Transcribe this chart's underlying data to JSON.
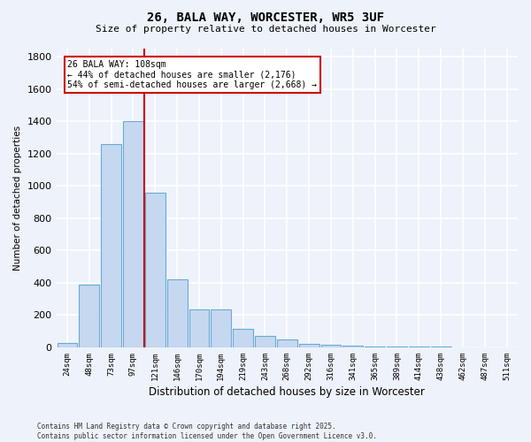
{
  "title": "26, BALA WAY, WORCESTER, WR5 3UF",
  "subtitle": "Size of property relative to detached houses in Worcester",
  "xlabel": "Distribution of detached houses by size in Worcester",
  "ylabel": "Number of detached properties",
  "categories": [
    "24sqm",
    "48sqm",
    "73sqm",
    "97sqm",
    "121sqm",
    "146sqm",
    "170sqm",
    "194sqm",
    "219sqm",
    "243sqm",
    "268sqm",
    "292sqm",
    "316sqm",
    "341sqm",
    "365sqm",
    "389sqm",
    "414sqm",
    "438sqm",
    "462sqm",
    "487sqm",
    "511sqm"
  ],
  "values": [
    25,
    390,
    1260,
    1400,
    960,
    420,
    235,
    235,
    115,
    70,
    50,
    20,
    15,
    10,
    5,
    5,
    3,
    3,
    2,
    2,
    0
  ],
  "bar_color": "#c5d8f0",
  "bar_edge_color": "#6aaad4",
  "vline_index": 3.5,
  "vline_color": "#cc0000",
  "annotation_text": "26 BALA WAY: 108sqm\n← 44% of detached houses are smaller (2,176)\n54% of semi-detached houses are larger (2,668) →",
  "annotation_box_color": "#ffffff",
  "annotation_box_edge": "#cc0000",
  "background_color": "#eef2fa",
  "grid_color": "#ffffff",
  "footer": "Contains HM Land Registry data © Crown copyright and database right 2025.\nContains public sector information licensed under the Open Government Licence v3.0.",
  "ylim": [
    0,
    1850
  ],
  "yticks": [
    0,
    200,
    400,
    600,
    800,
    1000,
    1200,
    1400,
    1600,
    1800
  ]
}
